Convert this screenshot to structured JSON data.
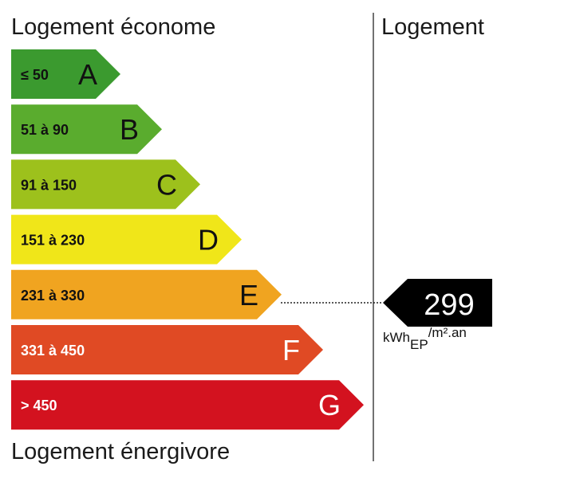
{
  "headings": {
    "top": "Logement économe",
    "bottom": "Logement énergivore",
    "right": "Logement"
  },
  "value": {
    "number": "299",
    "unit_main": "kWh",
    "unit_sub": "EP",
    "unit_suffix": "/m².an"
  },
  "chart_data": {
    "type": "bar",
    "title": "",
    "categories": [
      "A",
      "B",
      "C",
      "D",
      "E",
      "F",
      "G"
    ],
    "range_labels": [
      "≤ 50",
      "51 à 90",
      "91 à 150",
      "151 à 230",
      "231 à 330",
      "331 à 450",
      "> 450"
    ],
    "colors": [
      "#3b9a2f",
      "#5aac2e",
      "#9dc11c",
      "#f0e619",
      "#f0a420",
      "#e04a24",
      "#d3121f"
    ],
    "highlighted_class": "E",
    "value": 299,
    "value_unit": "kWhEP/m².an"
  }
}
